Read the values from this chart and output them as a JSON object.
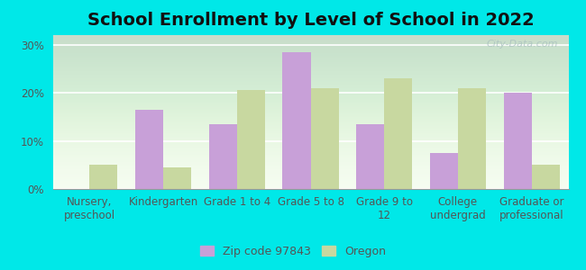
{
  "title": "School Enrollment by Level of School in 2022",
  "categories": [
    "Nursery,\npreschool",
    "Kindergarten",
    "Grade 1 to 4",
    "Grade 5 to 8",
    "Grade 9 to\n12",
    "College\nundergrad",
    "Graduate or\nprofessional"
  ],
  "zip_values": [
    0,
    16.5,
    13.5,
    28.5,
    13.5,
    7.5,
    20.0
  ],
  "oregon_values": [
    5.0,
    4.5,
    20.5,
    21.0,
    23.0,
    21.0,
    5.0
  ],
  "zip_color": "#c8a0d8",
  "oregon_color": "#c8d8a0",
  "background_color": "#00e8e8",
  "ylim": [
    0,
    32
  ],
  "yticks": [
    0,
    10,
    20,
    30
  ],
  "legend_zip_label": "Zip code 97843",
  "legend_oregon_label": "Oregon",
  "bar_width": 0.38,
  "title_fontsize": 14,
  "axis_fontsize": 8.5,
  "legend_fontsize": 9,
  "watermark_text": "City-Data.com"
}
